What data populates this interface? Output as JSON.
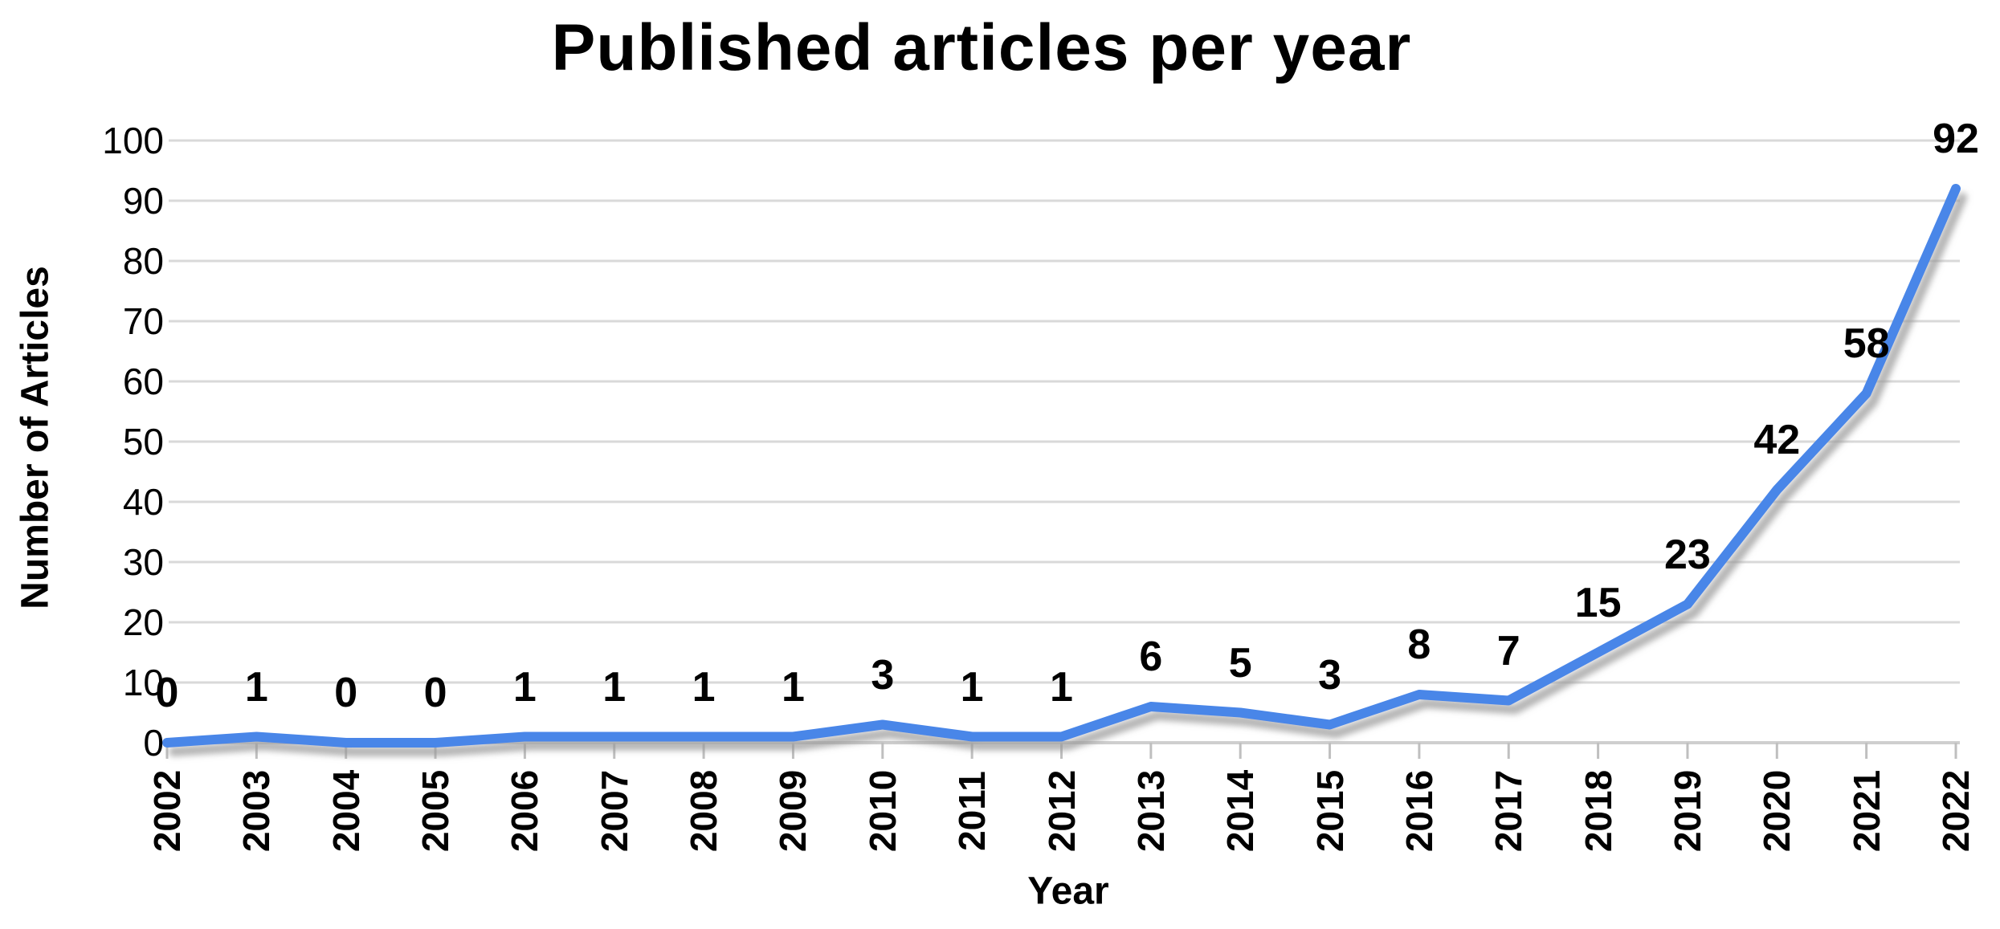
{
  "chart_data": {
    "type": "line",
    "title": "Published articles per year",
    "xlabel": "Year",
    "ylabel": "Number of Articles",
    "x": [
      "2002",
      "2003",
      "2004",
      "2005",
      "2006",
      "2007",
      "2008",
      "2009",
      "2010",
      "2011",
      "2012",
      "2013",
      "2014",
      "2015",
      "2016",
      "2017",
      "2018",
      "2019",
      "2020",
      "2021",
      "2022"
    ],
    "values": [
      0,
      1,
      0,
      0,
      1,
      1,
      1,
      1,
      3,
      1,
      1,
      6,
      5,
      3,
      8,
      7,
      15,
      23,
      42,
      58,
      92
    ],
    "data_labels": [
      "0",
      "1",
      "0",
      "0",
      "1",
      "1",
      "1",
      "1",
      "3",
      "1",
      "1",
      "6",
      "5",
      "3",
      "8",
      "7",
      "15",
      "23",
      "42",
      "58",
      "92"
    ],
    "ylim": [
      0,
      100
    ],
    "ytick_step": 10,
    "ytick_labels": [
      "0",
      "10",
      "20",
      "30",
      "40",
      "50",
      "60",
      "70",
      "80",
      "90",
      "100"
    ],
    "grid": true,
    "legend_position": "none",
    "line_color": "#4a86e8",
    "line_shadow_color": "#9a9a9a",
    "gridline_color": "#d9d9d9",
    "axis_line_color": "#cfcfcf",
    "tick_mark_color": "#bfbfbf",
    "text_color": "#000000",
    "background_color": "#ffffff"
  }
}
